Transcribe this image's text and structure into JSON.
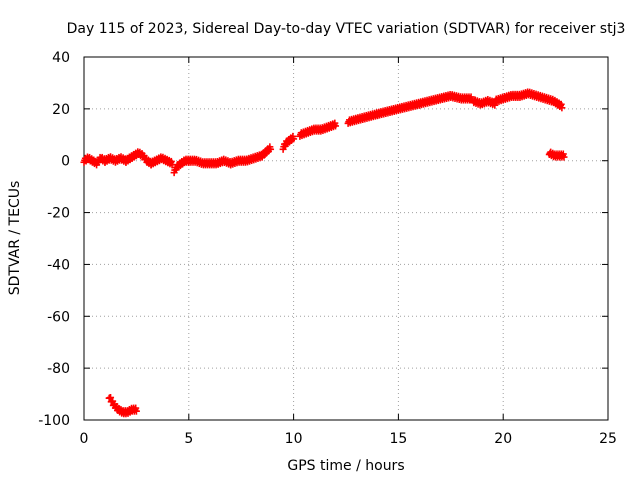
{
  "chart_data": {
    "type": "scatter",
    "title": "Day 115 of 2023, Sidereal Day-to-day VTEC variation (SDTVAR) for receiver stj3",
    "xlabel": "GPS time / hours",
    "ylabel": "SDTVAR / TECUs",
    "xlim": [
      0,
      25
    ],
    "ylim": [
      -100,
      40
    ],
    "xticks": [
      0,
      5,
      10,
      15,
      20,
      25
    ],
    "yticks": [
      -100,
      -80,
      -60,
      -40,
      -20,
      0,
      20,
      40
    ],
    "xtick_labels": [
      "0",
      "5",
      "10",
      "15",
      "20",
      "25"
    ],
    "ytick_labels": [
      "-100",
      "-80",
      "-60",
      "-40",
      "-20",
      "0",
      "20",
      "40"
    ],
    "grid": true,
    "marker": "plus",
    "color": "#ff0000",
    "series": [
      {
        "name": "SDTVAR",
        "segments": [
          {
            "x_start": 0.0,
            "x_end": 1.0,
            "y": [
              0,
              1,
              0,
              -1,
              1,
              0
            ]
          },
          {
            "x_start": 1.0,
            "x_end": 2.0,
            "y": [
              0,
              1,
              0,
              1,
              0
            ]
          },
          {
            "x_start": 2.0,
            "x_end": 3.2,
            "y": [
              0,
              1,
              2,
              3,
              2,
              0,
              -1
            ]
          },
          {
            "x_start": 3.2,
            "x_end": 4.2,
            "y": [
              -1,
              0,
              1,
              0,
              -1
            ]
          },
          {
            "x_start": 4.3,
            "x_end": 5.0,
            "y": [
              -4,
              -2,
              -1,
              0,
              0
            ]
          },
          {
            "x_start": 5.0,
            "x_end": 7.0,
            "y": [
              0,
              0,
              -1,
              -1,
              -1,
              0,
              -1
            ]
          },
          {
            "x_start": 7.0,
            "x_end": 8.5,
            "y": [
              -1,
              0,
              0,
              1,
              2
            ]
          },
          {
            "x_start": 8.5,
            "x_end": 8.9,
            "y": [
              2,
              3,
              4,
              5
            ]
          },
          {
            "x_start": 9.5,
            "x_end": 10.0,
            "y": [
              5,
              7,
              8,
              9
            ]
          },
          {
            "x_start": 10.3,
            "x_end": 12.0,
            "y": [
              10,
              11,
              12,
              12,
              13,
              14
            ]
          },
          {
            "x_start": 12.6,
            "x_end": 14.0,
            "y": [
              15,
              16,
              17,
              18
            ]
          },
          {
            "x_start": 14.0,
            "x_end": 16.0,
            "y": [
              18,
              19,
              20,
              21,
              22
            ]
          },
          {
            "x_start": 16.0,
            "x_end": 18.5,
            "y": [
              22,
              23,
              24,
              25,
              24,
              24
            ]
          },
          {
            "x_start": 18.6,
            "x_end": 19.6,
            "y": [
              23,
              22,
              23,
              22
            ]
          },
          {
            "x_start": 19.6,
            "x_end": 22.8,
            "y": [
              23,
              24,
              25,
              25,
              26,
              25,
              24,
              23,
              21
            ]
          },
          {
            "x_start": 22.2,
            "x_end": 22.9,
            "y": [
              3,
              2,
              2,
              2
            ]
          },
          {
            "x_start": 1.2,
            "x_end": 2.5,
            "y": [
              -91,
              -94,
              -96,
              -97,
              -97,
              -96,
              -96
            ]
          }
        ]
      }
    ]
  }
}
